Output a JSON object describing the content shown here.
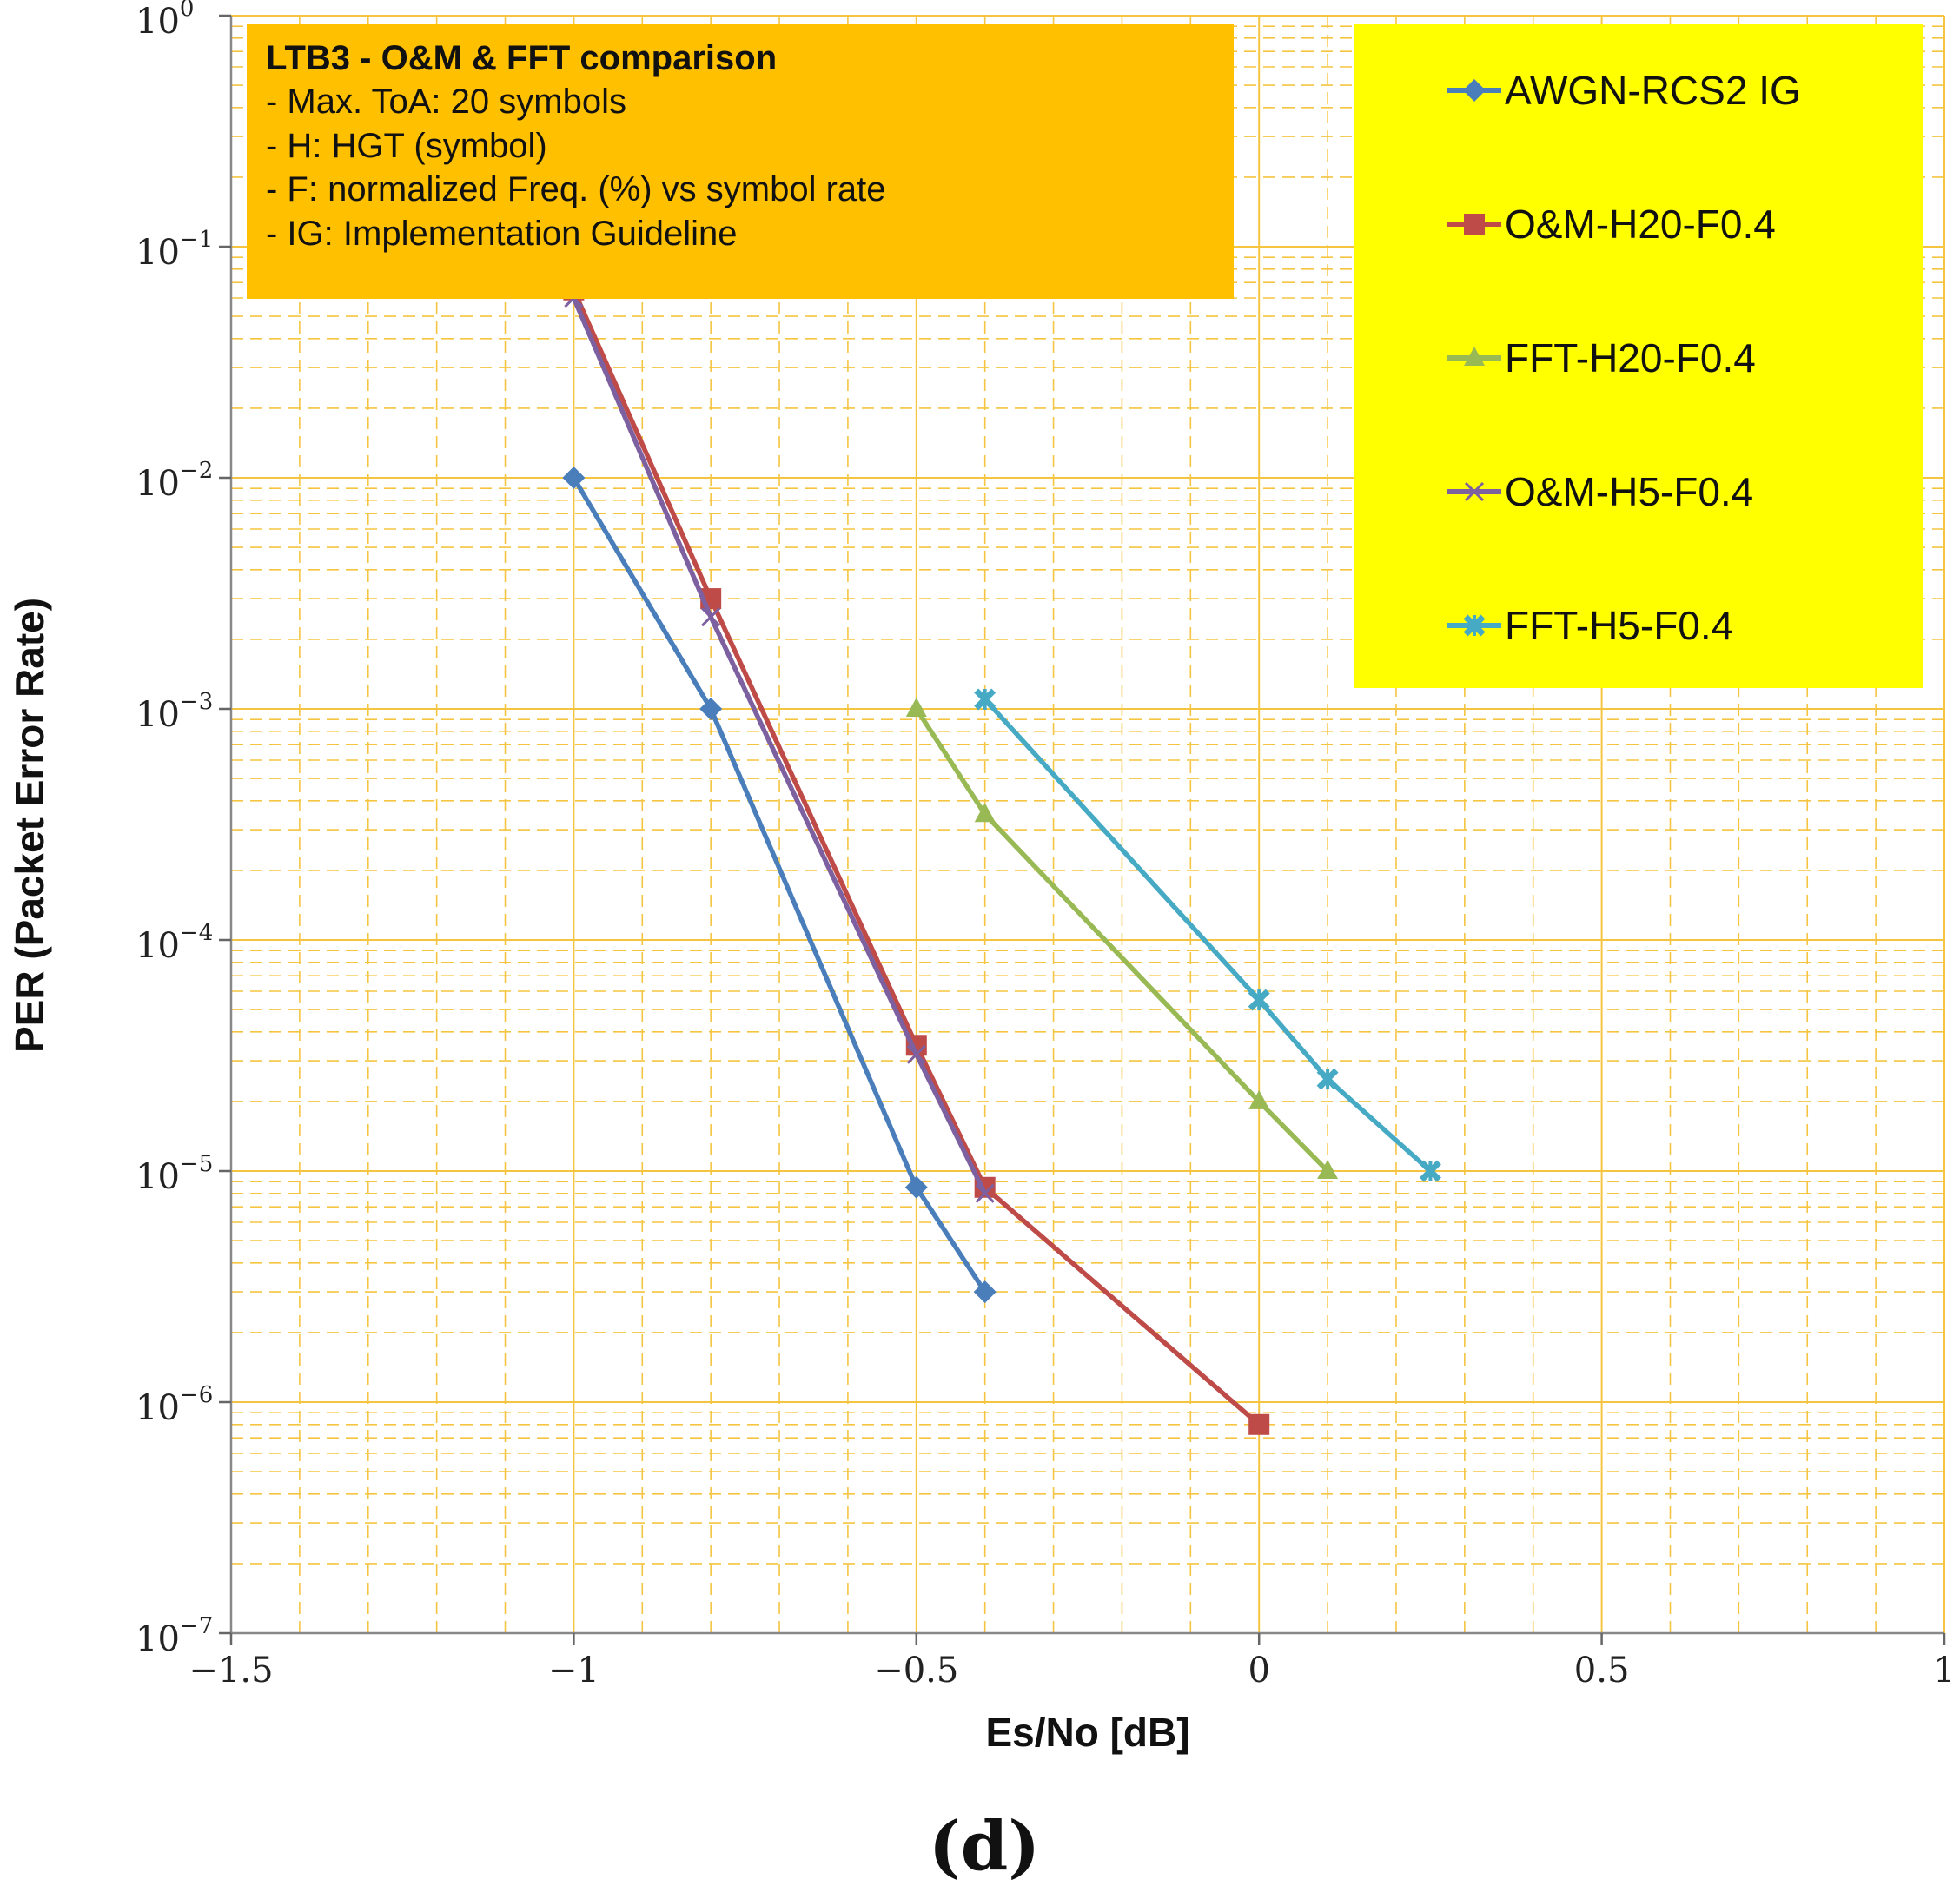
{
  "chart_data": {
    "type": "line",
    "title": "",
    "xlabel": "Es/No [dB]",
    "ylabel": "PER (Packet Error Rate)",
    "xscale": "linear",
    "yscale": "log",
    "xlim": [
      -1.5,
      1
    ],
    "ylim": [
      1e-07,
      1
    ],
    "x_ticks": [
      "−1.5",
      "−1",
      "−0.5",
      "0",
      "0.5",
      "1"
    ],
    "x_tick_values": [
      -1.5,
      -1,
      -0.5,
      0,
      0.5,
      1
    ],
    "y_ticks": [
      {
        "base": "10",
        "exp": "0"
      },
      {
        "base": "10",
        "exp": "−1"
      },
      {
        "base": "10",
        "exp": "−2"
      },
      {
        "base": "10",
        "exp": "−3"
      },
      {
        "base": "10",
        "exp": "−4"
      },
      {
        "base": "10",
        "exp": "−5"
      },
      {
        "base": "10",
        "exp": "−6"
      },
      {
        "base": "10",
        "exp": "−7"
      }
    ],
    "y_tick_exponents": [
      0,
      -1,
      -2,
      -3,
      -4,
      -5,
      -6,
      -7
    ],
    "grid": true,
    "grid_color": "#f5c542",
    "annotation": {
      "title": "LTB3 - O&M & FFT comparison",
      "lines": [
        "- Max. ToA: 20 symbols",
        "- H: HGT (symbol)",
        "- F: normalized Freq. (%) vs symbol rate",
        "- IG: Implementation Guideline"
      ],
      "background": "#ffc000"
    },
    "legend": {
      "position": "top-right",
      "background": "#ffff00"
    },
    "series": [
      {
        "name": "AWGN-RCS2 IG",
        "color": "#4a7ebb",
        "marker": "diamond",
        "x": [
          -1,
          -0.8,
          -0.5,
          -0.4
        ],
        "y": [
          0.01,
          0.001,
          8.5e-06,
          3e-06
        ]
      },
      {
        "name": "O&M-H20-F0.4",
        "color": "#be4b48",
        "marker": "square",
        "x": [
          -1,
          -0.8,
          -0.5,
          -0.4,
          0
        ],
        "y": [
          0.065,
          0.003,
          3.5e-05,
          8.5e-06,
          8e-07
        ]
      },
      {
        "name": "FFT-H20-F0.4",
        "color": "#98b954",
        "marker": "triangle",
        "x": [
          -0.5,
          -0.4,
          0,
          0.1
        ],
        "y": [
          0.001,
          0.00035,
          2e-05,
          1e-05
        ]
      },
      {
        "name": "O&M-H5-F0.4",
        "color": "#7d60a0",
        "marker": "x",
        "x": [
          -1,
          -0.8,
          -0.5,
          -0.4
        ],
        "y": [
          0.06,
          0.0025,
          3.2e-05,
          8e-06
        ]
      },
      {
        "name": "FFT-H5-F0.4",
        "color": "#46aac5",
        "marker": "star",
        "x": [
          -0.4,
          0,
          0.1,
          0.25
        ],
        "y": [
          0.0011,
          5.5e-05,
          2.5e-05,
          1e-05
        ]
      }
    ]
  },
  "panel_label": "(d)"
}
